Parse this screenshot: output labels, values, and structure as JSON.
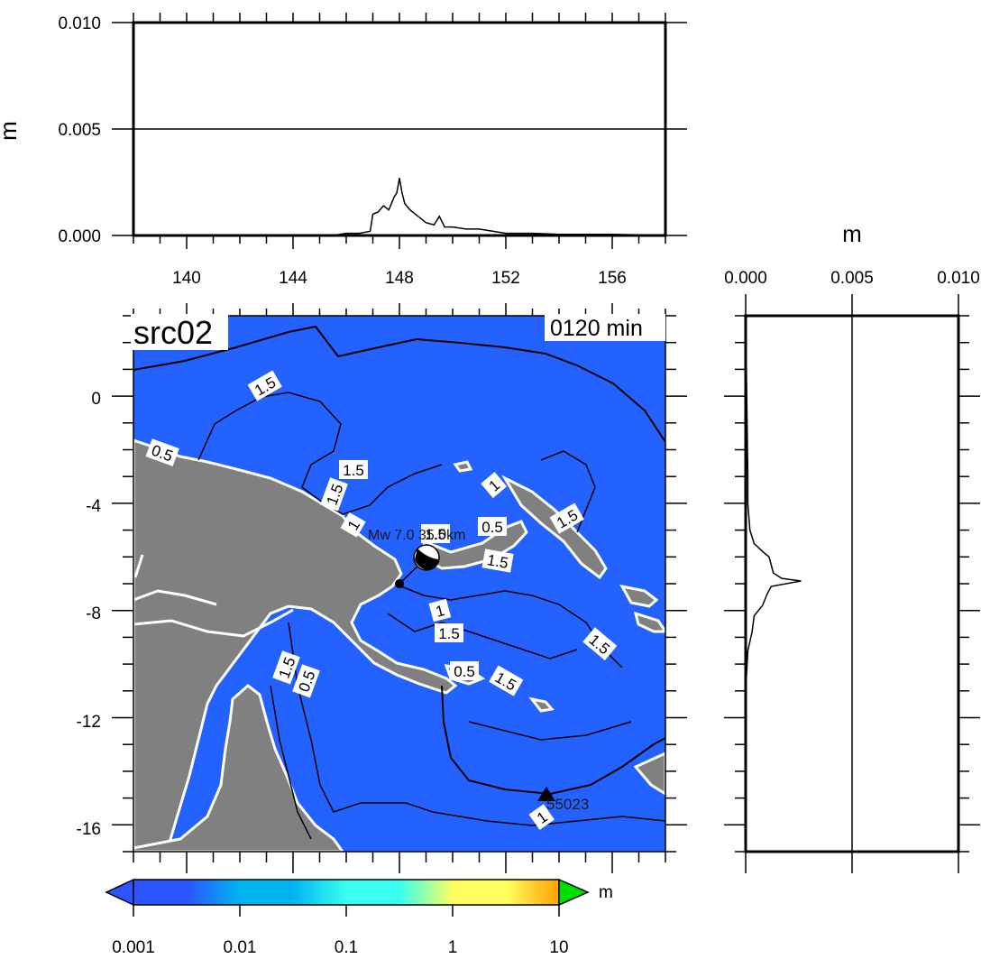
{
  "top_panel": {
    "y_unit": "m",
    "y_ticks": [
      "0.000",
      "0.005",
      "0.010"
    ],
    "x_ticks": [
      "140",
      "144",
      "148",
      "152",
      "156"
    ],
    "xlim": [
      138,
      158
    ],
    "ylim": [
      0,
      0.01
    ]
  },
  "side_panel": {
    "x_unit": "m",
    "x_ticks": [
      "0.000",
      "0.005",
      "0.010"
    ],
    "xlim": [
      0,
      0.01
    ],
    "ylim": [
      -17,
      3
    ]
  },
  "map": {
    "title": "src02",
    "time_label": "0120 min",
    "y_ticks": [
      "0",
      "-4",
      "-8",
      "-12",
      "-16"
    ],
    "xlim": [
      138,
      158
    ],
    "ylim": [
      -17,
      3
    ],
    "source_label": "Mw 7.0 35.0km",
    "station_label": "55023",
    "ocean_color": "#2362ff",
    "land_color": "#808080",
    "contour_labels": [
      "1.5",
      "0.5",
      "1.5",
      "1.5",
      "1",
      "1.5",
      "0.5",
      "1",
      "1.5",
      "1.5",
      "1",
      "1.5",
      "1.5",
      "0.5",
      "1.5",
      "1.5",
      "0.5",
      "1"
    ]
  },
  "colorbar": {
    "unit": "m",
    "tick_labels": [
      "0.001",
      "0.01",
      "0.1",
      "1",
      "10"
    ],
    "colors": [
      "#2b55ff",
      "#00b4f2",
      "#38fff0",
      "#ffff60",
      "#ffa000",
      "#ff2000",
      "#00e000"
    ]
  },
  "chart_data": [
    {
      "type": "line",
      "title": "",
      "ylabel": "m",
      "xlim": [
        138,
        158
      ],
      "ylim": [
        0,
        0.01
      ],
      "series": [
        {
          "x": [
            138,
            145.5,
            146,
            146.5,
            146.9,
            147.0,
            147.2,
            147.4,
            147.6,
            147.8,
            147.9,
            148.0,
            148.1,
            148.2,
            148.4,
            148.6,
            148.8,
            149.0,
            149.3,
            149.5,
            149.7,
            150,
            150.5,
            151,
            151.5,
            152,
            153,
            154,
            156,
            158
          ],
          "y": [
            0,
            0,
            0.0001,
            0.0001,
            0.0002,
            0.001,
            0.0011,
            0.0014,
            0.0012,
            0.0018,
            0.002,
            0.0027,
            0.002,
            0.0015,
            0.0012,
            0.001,
            0.0008,
            0.0006,
            0.0005,
            0.0009,
            0.0004,
            0.0004,
            0.0003,
            0.0003,
            0.0002,
            0.0001,
            0.0001,
            5e-05,
            5e-05,
            0
          ]
        }
      ]
    },
    {
      "type": "line",
      "title": "",
      "xlabel": "m",
      "xlim": [
        0,
        0.01
      ],
      "ylim": [
        -17,
        3
      ],
      "series": [
        {
          "y": [
            3,
            -3,
            -4,
            -5,
            -5.5,
            -5.8,
            -6.0,
            -6.3,
            -6.6,
            -6.8,
            -6.9,
            -7.1,
            -7.4,
            -7.8,
            -8.2,
            -8.8,
            -9.5,
            -11,
            -17
          ],
          "x": [
            0,
            0.0001,
            0.0001,
            0.0002,
            0.0004,
            0.0008,
            0.0011,
            0.0012,
            0.0013,
            0.0017,
            0.0026,
            0.0012,
            0.001,
            0.0008,
            0.0004,
            0.0003,
            0.0001,
            0,
            0
          ]
        }
      ]
    }
  ]
}
